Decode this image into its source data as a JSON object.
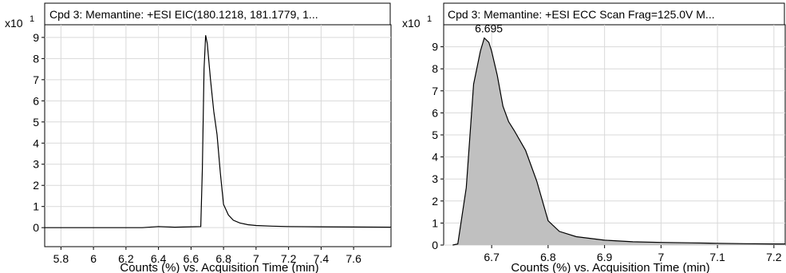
{
  "chart_data": [
    {
      "type": "line",
      "title": "Cpd 3: Memantine: +ESI EIC(180.1218, 181.1779, 1...",
      "xlabel": "Counts (%) vs. Acquisition Time (min)",
      "ylabel": "",
      "y_multiplier_label": "x10",
      "y_multiplier_exponent": "1",
      "xlim": [
        5.7,
        7.83
      ],
      "ylim": [
        -0.9,
        9.6
      ],
      "x_ticks": [
        "5.8",
        "6",
        "6.2",
        "6.4",
        "6.6",
        "6.8",
        "7",
        "7.2",
        "7.4",
        "7.6"
      ],
      "y_ticks": [
        "0",
        "1",
        "2",
        "3",
        "4",
        "5",
        "6",
        "7",
        "8",
        "9"
      ],
      "grid": true,
      "legend": "none",
      "series": [
        {
          "color": "#000000",
          "x": [
            5.7,
            6.3,
            6.4,
            6.5,
            6.6,
            6.66,
            6.67,
            6.68,
            6.69,
            6.7,
            6.72,
            6.74,
            6.76,
            6.78,
            6.8,
            6.83,
            6.86,
            6.9,
            6.95,
            7.0,
            7.1,
            7.2,
            7.4,
            7.6,
            7.83
          ],
          "y": [
            0,
            0,
            0.05,
            0.02,
            0.04,
            0.05,
            2.8,
            7.5,
            9.1,
            8.7,
            7.0,
            5.5,
            4.4,
            2.6,
            1.1,
            0.6,
            0.35,
            0.22,
            0.14,
            0.1,
            0.07,
            0.05,
            0.04,
            0.03,
            0.02
          ]
        }
      ]
    },
    {
      "type": "area",
      "title": "Cpd 3: Memantine: +ESI ECC Scan Frag=125.0V M...",
      "xlabel": "Counts (%) vs. Acquisition Time (min)",
      "ylabel": "",
      "y_multiplier_label": "x10",
      "y_multiplier_exponent": "1",
      "xlim": [
        6.615,
        7.22
      ],
      "ylim": [
        0,
        10
      ],
      "x_ticks": [
        "6.7",
        "6.8",
        "6.9",
        "7",
        "7.1",
        "7.2"
      ],
      "y_ticks": [
        "0",
        "1",
        "2",
        "3",
        "4",
        "5",
        "6",
        "7",
        "8",
        "9"
      ],
      "grid": true,
      "legend": "none",
      "annotations": [
        {
          "text": "6.695",
          "x": 6.695,
          "y": 9.65
        }
      ],
      "fill_color": "#c0c0c0",
      "series": [
        {
          "color": "#000000",
          "x": [
            6.631,
            6.64,
            6.655,
            6.668,
            6.68,
            6.687,
            6.695,
            6.7,
            6.71,
            6.72,
            6.73,
            6.74,
            6.76,
            6.78,
            6.8,
            6.82,
            6.85,
            6.9,
            6.95,
            7.0,
            7.05,
            7.1,
            7.15,
            7.2,
            7.22
          ],
          "y": [
            0,
            0.05,
            2.6,
            7.3,
            8.8,
            9.4,
            9.2,
            8.8,
            7.7,
            6.3,
            5.6,
            5.2,
            4.3,
            2.9,
            1.1,
            0.62,
            0.38,
            0.22,
            0.15,
            0.12,
            0.1,
            0.08,
            0.06,
            0.05,
            0.05
          ]
        }
      ]
    }
  ]
}
